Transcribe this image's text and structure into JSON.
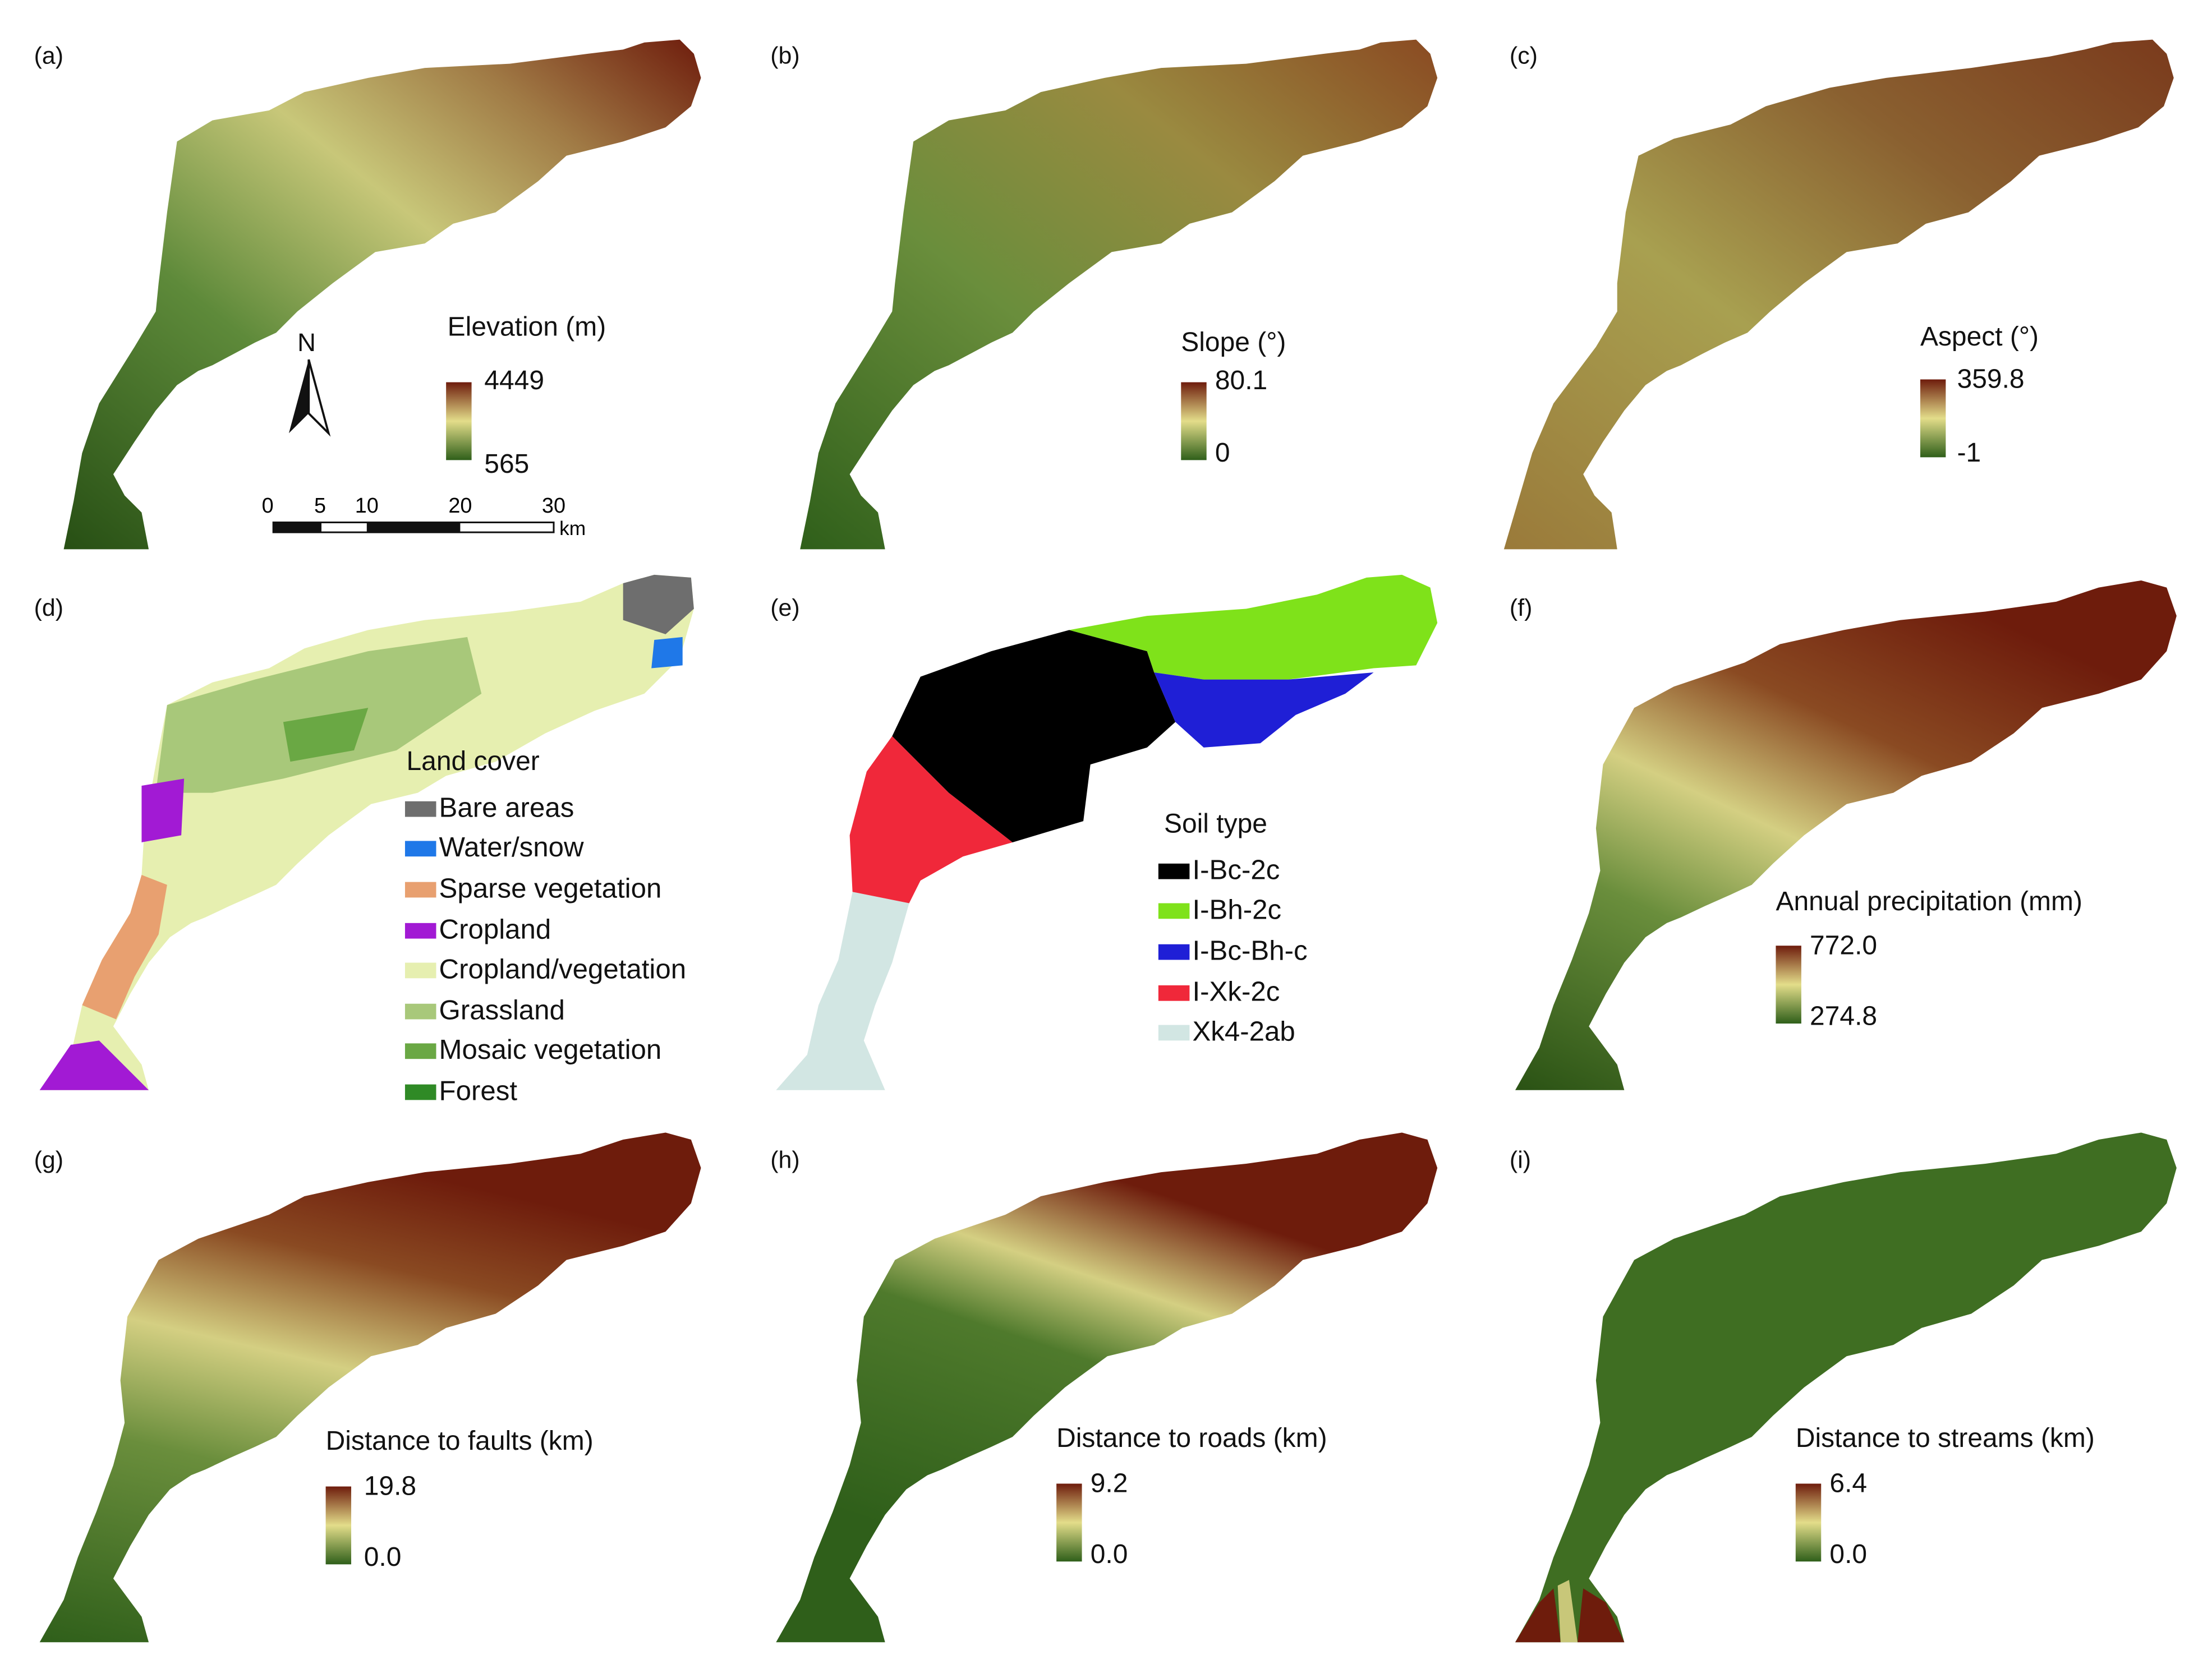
{
  "colors": {
    "ramp_low": "#2f5f1a",
    "ramp_mid": "#e3dd8a",
    "ramp_high": "#6e1c0c",
    "background": "#ffffff"
  },
  "panels": [
    {
      "id": "a",
      "label": "(a)",
      "type": "continuous",
      "legend_title": "Elevation (m)",
      "max": "4449",
      "min": "565"
    },
    {
      "id": "b",
      "label": "(b)",
      "type": "continuous",
      "legend_title": "Slope (°)",
      "max": "80.1",
      "min": "0"
    },
    {
      "id": "c",
      "label": "(c)",
      "type": "continuous",
      "legend_title": "Aspect (°)",
      "max": "359.8",
      "min": "-1"
    },
    {
      "id": "d",
      "label": "(d)",
      "type": "categorical",
      "legend_title": "Land cover",
      "categories": [
        {
          "name": "Bare areas",
          "color": "#6e6e6e"
        },
        {
          "name": "Water/snow",
          "color": "#1f78e8"
        },
        {
          "name": "Sparse vegetation",
          "color": "#e8a070"
        },
        {
          "name": "Cropland",
          "color": "#a21ad4"
        },
        {
          "name": "Cropland/vegetation",
          "color": "#e6efb0"
        },
        {
          "name": "Grassland",
          "color": "#a8c87a"
        },
        {
          "name": "Mosaic vegetation",
          "color": "#6aa844"
        },
        {
          "name": "Forest",
          "color": "#2f8a26"
        }
      ]
    },
    {
      "id": "e",
      "label": "(e)",
      "type": "categorical",
      "legend_title": "Soil type",
      "categories": [
        {
          "name": "I-Bc-2c",
          "color": "#000000"
        },
        {
          "name": "I-Bh-2c",
          "color": "#7fe21a"
        },
        {
          "name": "I-Bc-Bh-c",
          "color": "#1f1fd6"
        },
        {
          "name": "I-Xk-2c",
          "color": "#f0283a"
        },
        {
          "name": "Xk4-2ab",
          "color": "#d2e6e3"
        }
      ]
    },
    {
      "id": "f",
      "label": "(f)",
      "type": "continuous",
      "legend_title": "Annual precipitation (mm)",
      "max": "772.0",
      "min": "274.8"
    },
    {
      "id": "g",
      "label": "(g)",
      "type": "continuous",
      "legend_title": "Distance to faults (km)",
      "max": "19.8",
      "min": "0.0"
    },
    {
      "id": "h",
      "label": "(h)",
      "type": "continuous",
      "legend_title": "Distance to roads (km)",
      "max": "9.2",
      "min": "0.0"
    },
    {
      "id": "i",
      "label": "(i)",
      "type": "continuous",
      "legend_title": "Distance to streams (km)",
      "max": "6.4",
      "min": "0.0"
    }
  ],
  "north_arrow": {
    "label": "N"
  },
  "scale_bar": {
    "ticks": [
      "0",
      "5",
      "10",
      "20",
      "30"
    ],
    "unit": "km"
  }
}
